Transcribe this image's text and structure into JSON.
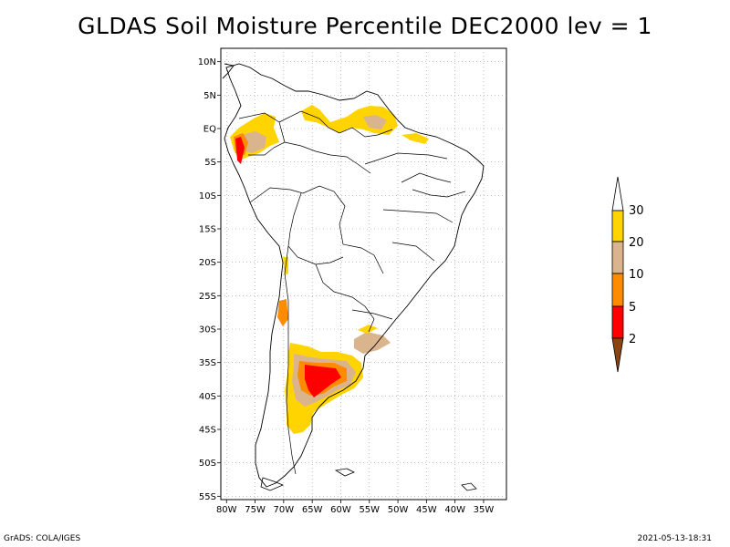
{
  "title": "GLDAS Soil Moisture Percentile DEC2000 lev = 1",
  "credit": "GrADS: COLA/IGES",
  "timestamp": "2021-05-13-18:31",
  "map": {
    "lat_ticks": [
      "10N",
      "5N",
      "EQ",
      "5S",
      "10S",
      "15S",
      "20S",
      "25S",
      "30S",
      "35S",
      "40S",
      "45S",
      "50S",
      "55S"
    ],
    "lon_ticks": [
      "80W",
      "75W",
      "70W",
      "65W",
      "60W",
      "55W",
      "50W",
      "45W",
      "40W",
      "35W"
    ],
    "lat_range": [
      -55.5,
      12
    ],
    "lon_range": [
      -81,
      -31
    ]
  },
  "colorbar": {
    "labels": [
      "30",
      "20",
      "10",
      "5",
      "2"
    ],
    "colors": {
      "above_30": "#ffffff",
      "20_30": "#ffd400",
      "10_20": "#d9b48c",
      "5_10": "#ff8c00",
      "2_5": "#ff0000",
      "below_2": "#8b4513"
    }
  }
}
